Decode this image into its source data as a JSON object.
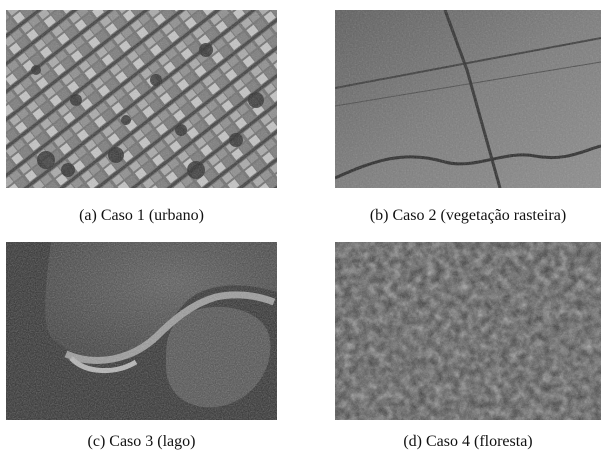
{
  "figure": {
    "panels": [
      {
        "id": "a",
        "caption": "(a)  Caso 1 (urbano)",
        "scene": "urban"
      },
      {
        "id": "b",
        "caption": "(b)  Caso 2 (vegetação rasteira)",
        "scene": "low-vegetation"
      },
      {
        "id": "c",
        "caption": "(c)  Caso 3 (lago)",
        "scene": "lake"
      },
      {
        "id": "d",
        "caption": "(d)  Caso 4 (floresta)",
        "scene": "forest"
      }
    ]
  }
}
